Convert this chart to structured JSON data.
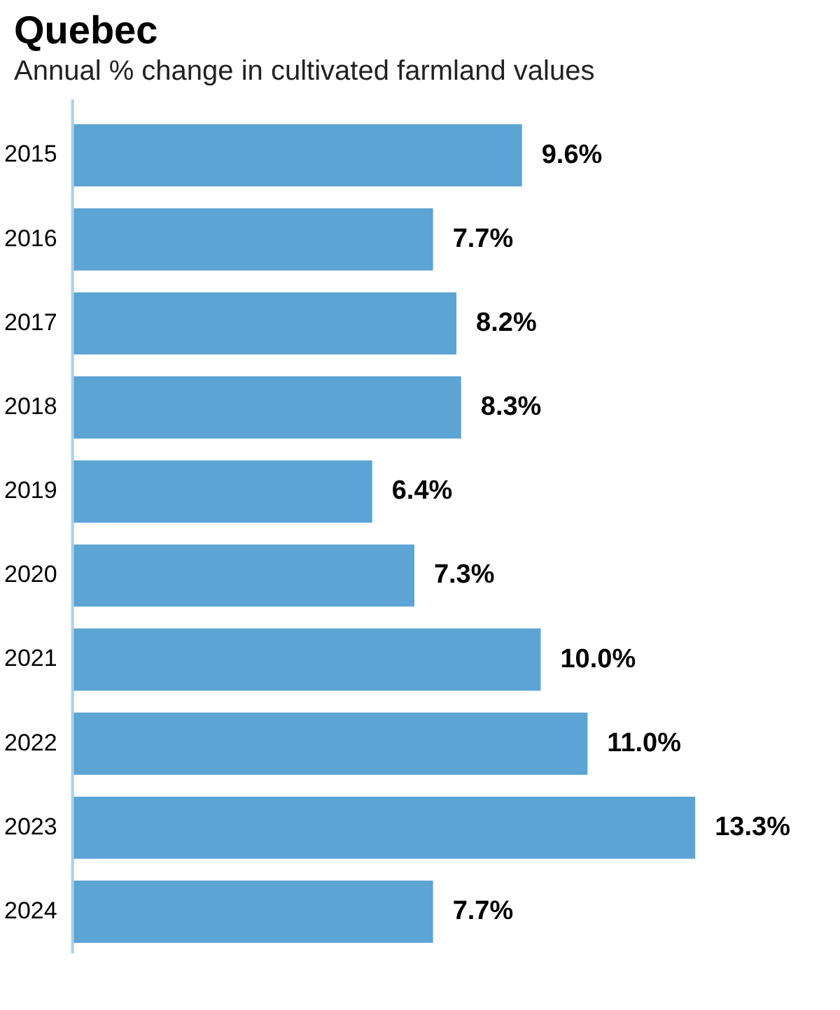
{
  "chart_data": {
    "type": "bar",
    "orientation": "horizontal",
    "title": "Quebec",
    "subtitle": "Annual % change in cultivated farmland values",
    "categories": [
      "2015",
      "2016",
      "2017",
      "2018",
      "2019",
      "2020",
      "2021",
      "2022",
      "2023",
      "2024"
    ],
    "values": [
      9.6,
      7.7,
      8.2,
      8.3,
      6.4,
      7.3,
      10.0,
      11.0,
      13.3,
      7.7
    ],
    "value_labels": [
      "9.6%",
      "7.7%",
      "8.2%",
      "8.3%",
      "6.4%",
      "7.3%",
      "10.0%",
      "11.0%",
      "13.3%",
      "7.7%"
    ],
    "color": "#5ba4d4"
  }
}
